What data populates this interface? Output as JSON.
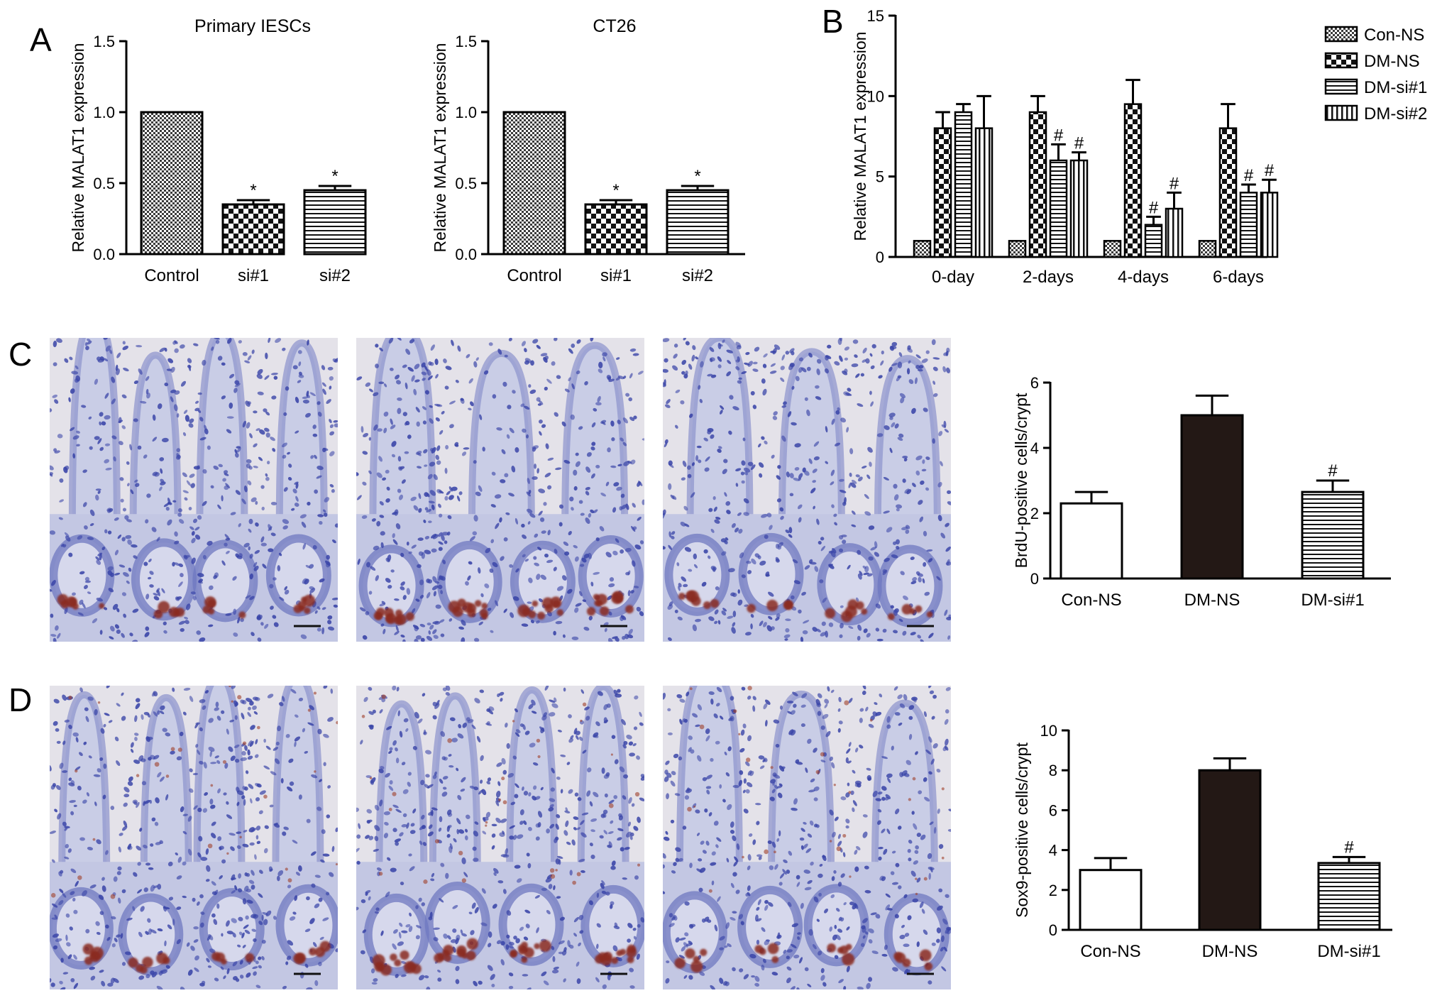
{
  "panel_labels": [
    "A",
    "B",
    "C",
    "D"
  ],
  "micrographs": [
    {
      "name": "BrdU-stained intestinal section, Con-NS",
      "stain": "BrdU"
    },
    {
      "name": "BrdU-stained intestinal section, DM-NS",
      "stain": "BrdU"
    },
    {
      "name": "BrdU-stained intestinal section, DM-si#1",
      "stain": "BrdU"
    },
    {
      "name": "Sox9-stained intestinal section, Con-NS",
      "stain": "Sox9"
    },
    {
      "name": "Sox9-stained intestinal section, DM-NS",
      "stain": "Sox9"
    },
    {
      "name": "Sox9-stained intestinal section, DM-si#1",
      "stain": "Sox9"
    }
  ],
  "colors": {
    "tissue_background": "#c9cde6",
    "nuclei": "#3a45a8",
    "positive_stain": "#8a2a1c",
    "dark_bar": "#231815"
  },
  "chart_data": [
    {
      "id": "A1",
      "type": "bar",
      "title": "Primary IESCs",
      "categories": [
        "Control",
        "si#1",
        "si#2"
      ],
      "values": [
        1.0,
        0.35,
        0.45
      ],
      "errors": [
        0,
        0.03,
        0.03
      ],
      "significance": [
        "",
        "*",
        "*"
      ],
      "ylabel": "Relative MALAT1 expression",
      "xlabel": "",
      "ylim": [
        0,
        1.5
      ],
      "yticks": [
        "0.0",
        "0.5",
        "1.0",
        "1.5"
      ],
      "patterns": [
        "fine-check",
        "big-check",
        "hlines"
      ],
      "grid": false
    },
    {
      "id": "A2",
      "type": "bar",
      "title": "CT26",
      "categories": [
        "Control",
        "si#1",
        "si#2"
      ],
      "values": [
        1.0,
        0.35,
        0.45
      ],
      "errors": [
        0,
        0.03,
        0.03
      ],
      "significance": [
        "",
        "*",
        "*"
      ],
      "ylabel": "Relative MALAT1 expression",
      "xlabel": "",
      "ylim": [
        0,
        1.5
      ],
      "yticks": [
        "0.0",
        "0.5",
        "1.0",
        "1.5"
      ],
      "patterns": [
        "fine-check",
        "big-check",
        "hlines"
      ],
      "grid": false
    },
    {
      "id": "B",
      "type": "bar",
      "title": "",
      "categories": [
        "0-day",
        "2-days",
        "4-days",
        "6-days"
      ],
      "series": [
        {
          "name": "Con-NS",
          "values": [
            1,
            1,
            1,
            1
          ],
          "errors": [
            0,
            0,
            0,
            0
          ],
          "significance": [
            "",
            "",
            "",
            ""
          ],
          "pattern": "fine-check"
        },
        {
          "name": "DM-NS",
          "values": [
            8,
            9,
            9.5,
            8
          ],
          "errors": [
            1,
            1,
            1.5,
            1.5
          ],
          "significance": [
            "",
            "",
            "",
            ""
          ],
          "pattern": "big-check"
        },
        {
          "name": "DM-si#1",
          "values": [
            9,
            6,
            2,
            4
          ],
          "errors": [
            0.5,
            1,
            0.5,
            0.5
          ],
          "significance": [
            "",
            "#",
            "#",
            "#"
          ],
          "pattern": "hlines"
        },
        {
          "name": "DM-si#2",
          "values": [
            8,
            6,
            3,
            4
          ],
          "errors": [
            2,
            0.5,
            1,
            0.8
          ],
          "significance": [
            "",
            "#",
            "#",
            "#"
          ],
          "pattern": "vlines"
        }
      ],
      "ylabel": "Relative MALAT1 expression",
      "xlabel": "",
      "ylim": [
        0,
        15
      ],
      "yticks": [
        "0",
        "5",
        "10",
        "15"
      ],
      "legend": "top-right",
      "grid": false
    },
    {
      "id": "C",
      "type": "bar",
      "title": "",
      "categories": [
        "Con-NS",
        "DM-NS",
        "DM-si#1"
      ],
      "values": [
        2.3,
        5.0,
        2.65
      ],
      "errors": [
        0.35,
        0.6,
        0.35
      ],
      "significance": [
        "",
        "",
        "#"
      ],
      "ylabel": "BrdU-positive cells/crypt",
      "xlabel": "",
      "ylim": [
        0,
        6
      ],
      "yticks": [
        "0",
        "2",
        "4",
        "6"
      ],
      "patterns": [
        "white",
        "dark",
        "hlines"
      ],
      "grid": false
    },
    {
      "id": "D",
      "type": "bar",
      "title": "",
      "categories": [
        "Con-NS",
        "DM-NS",
        "DM-si#1"
      ],
      "values": [
        3.0,
        8.0,
        3.35
      ],
      "errors": [
        0.6,
        0.6,
        0.3
      ],
      "significance": [
        "",
        "",
        "#"
      ],
      "ylabel": "Sox9-positive cells/crypt",
      "xlabel": "",
      "ylim": [
        0,
        10
      ],
      "yticks": [
        "0",
        "2",
        "4",
        "6",
        "8",
        "10"
      ],
      "patterns": [
        "white",
        "dark",
        "hlines"
      ],
      "grid": false
    }
  ]
}
